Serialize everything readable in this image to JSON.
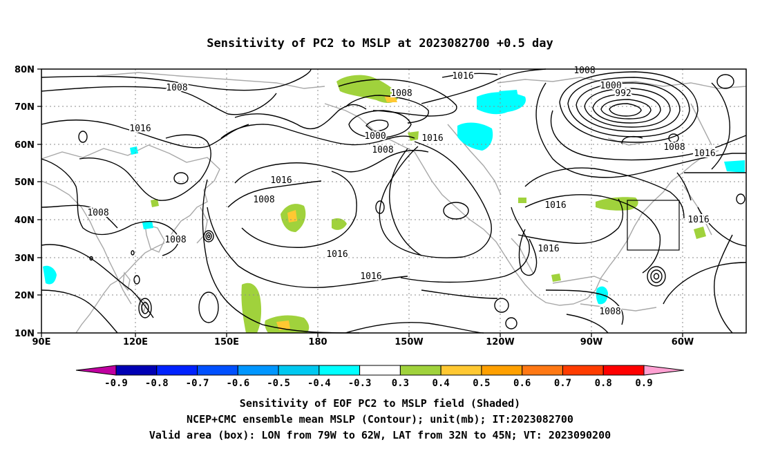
{
  "title": "Sensitivity of PC2 to MSLP at 2023082700 +0.5 day",
  "map": {
    "lon_ticks": [
      "90E",
      "120E",
      "150E",
      "180",
      "150W",
      "120W",
      "90W",
      "60W"
    ],
    "lat_ticks": [
      "80N",
      "70N",
      "60N",
      "50N",
      "40N",
      "30N",
      "20N",
      "10N"
    ],
    "contour_labels": [
      "1016",
      "1008",
      "1008",
      "1016",
      "1008",
      "1008",
      "1016",
      "1008",
      "1000",
      "1008",
      "1016",
      "1016",
      "1000",
      "992",
      "1008",
      "1016",
      "1016",
      "1016",
      "1016",
      "1016",
      "1008",
      "1016",
      "1008"
    ],
    "valid_box": {
      "lon_from": -79,
      "lon_to": -62,
      "lat_from": 32,
      "lat_to": 45
    }
  },
  "colorbar": {
    "labels": [
      "-0.9",
      "-0.8",
      "-0.7",
      "-0.6",
      "-0.5",
      "-0.4",
      "-0.3",
      "0.3",
      "0.4",
      "0.5",
      "0.6",
      "0.7",
      "0.8",
      "0.9"
    ],
    "colors": [
      "#0000b4",
      "#0022ff",
      "#0050ff",
      "#0096ff",
      "#00c8f0",
      "#00ffff",
      "#ffffff",
      "#a0d23c",
      "#ffc832",
      "#ffa000",
      "#ff7814",
      "#ff3c00",
      "#ff0000"
    ],
    "low_extend_color": "#c000a0",
    "high_extend_color": "#ffa0d2"
  },
  "captions": [
    "Sensitivity of EOF PC2 to MSLP field (Shaded)",
    "NCEP+CMC ensemble mean MSLP (Contour); unit(mb); IT:2023082700",
    "Valid area (box): LON from 79W to 62W, LAT from 32N to 45N; VT: 2023090200"
  ]
}
